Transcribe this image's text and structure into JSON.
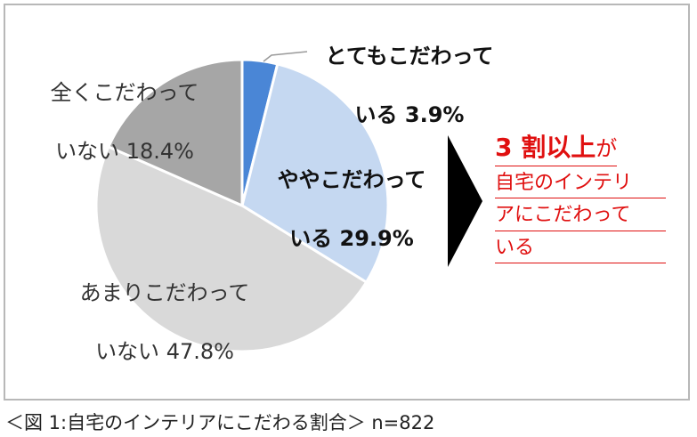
{
  "chart_data": {
    "type": "pie",
    "title": "",
    "slices": [
      {
        "label_line1": "とてもこだわって",
        "label_line2": "いる 3.9%",
        "value": 3.9,
        "color": "#4a86d6"
      },
      {
        "label_line1": "ややこだわって",
        "label_line2": "いる 29.9%",
        "value": 29.9,
        "color": "#c5d8f1"
      },
      {
        "label_line1": "あまりこだわって",
        "label_line2": "いない 47.8%",
        "value": 47.8,
        "color": "#d9d9d9"
      },
      {
        "label_line1": "全くこだわって",
        "label_line2": "いない 18.4%",
        "value": 18.4,
        "color": "#a6a6a6"
      }
    ]
  },
  "callout": {
    "head": "3 割以上",
    "head_suffix": "が",
    "lines": [
      "自宅のインテリ",
      "アにこだわって",
      "いる"
    ]
  },
  "caption": "＜図 1:自宅のインテリアにこだわる割合＞ n=822"
}
